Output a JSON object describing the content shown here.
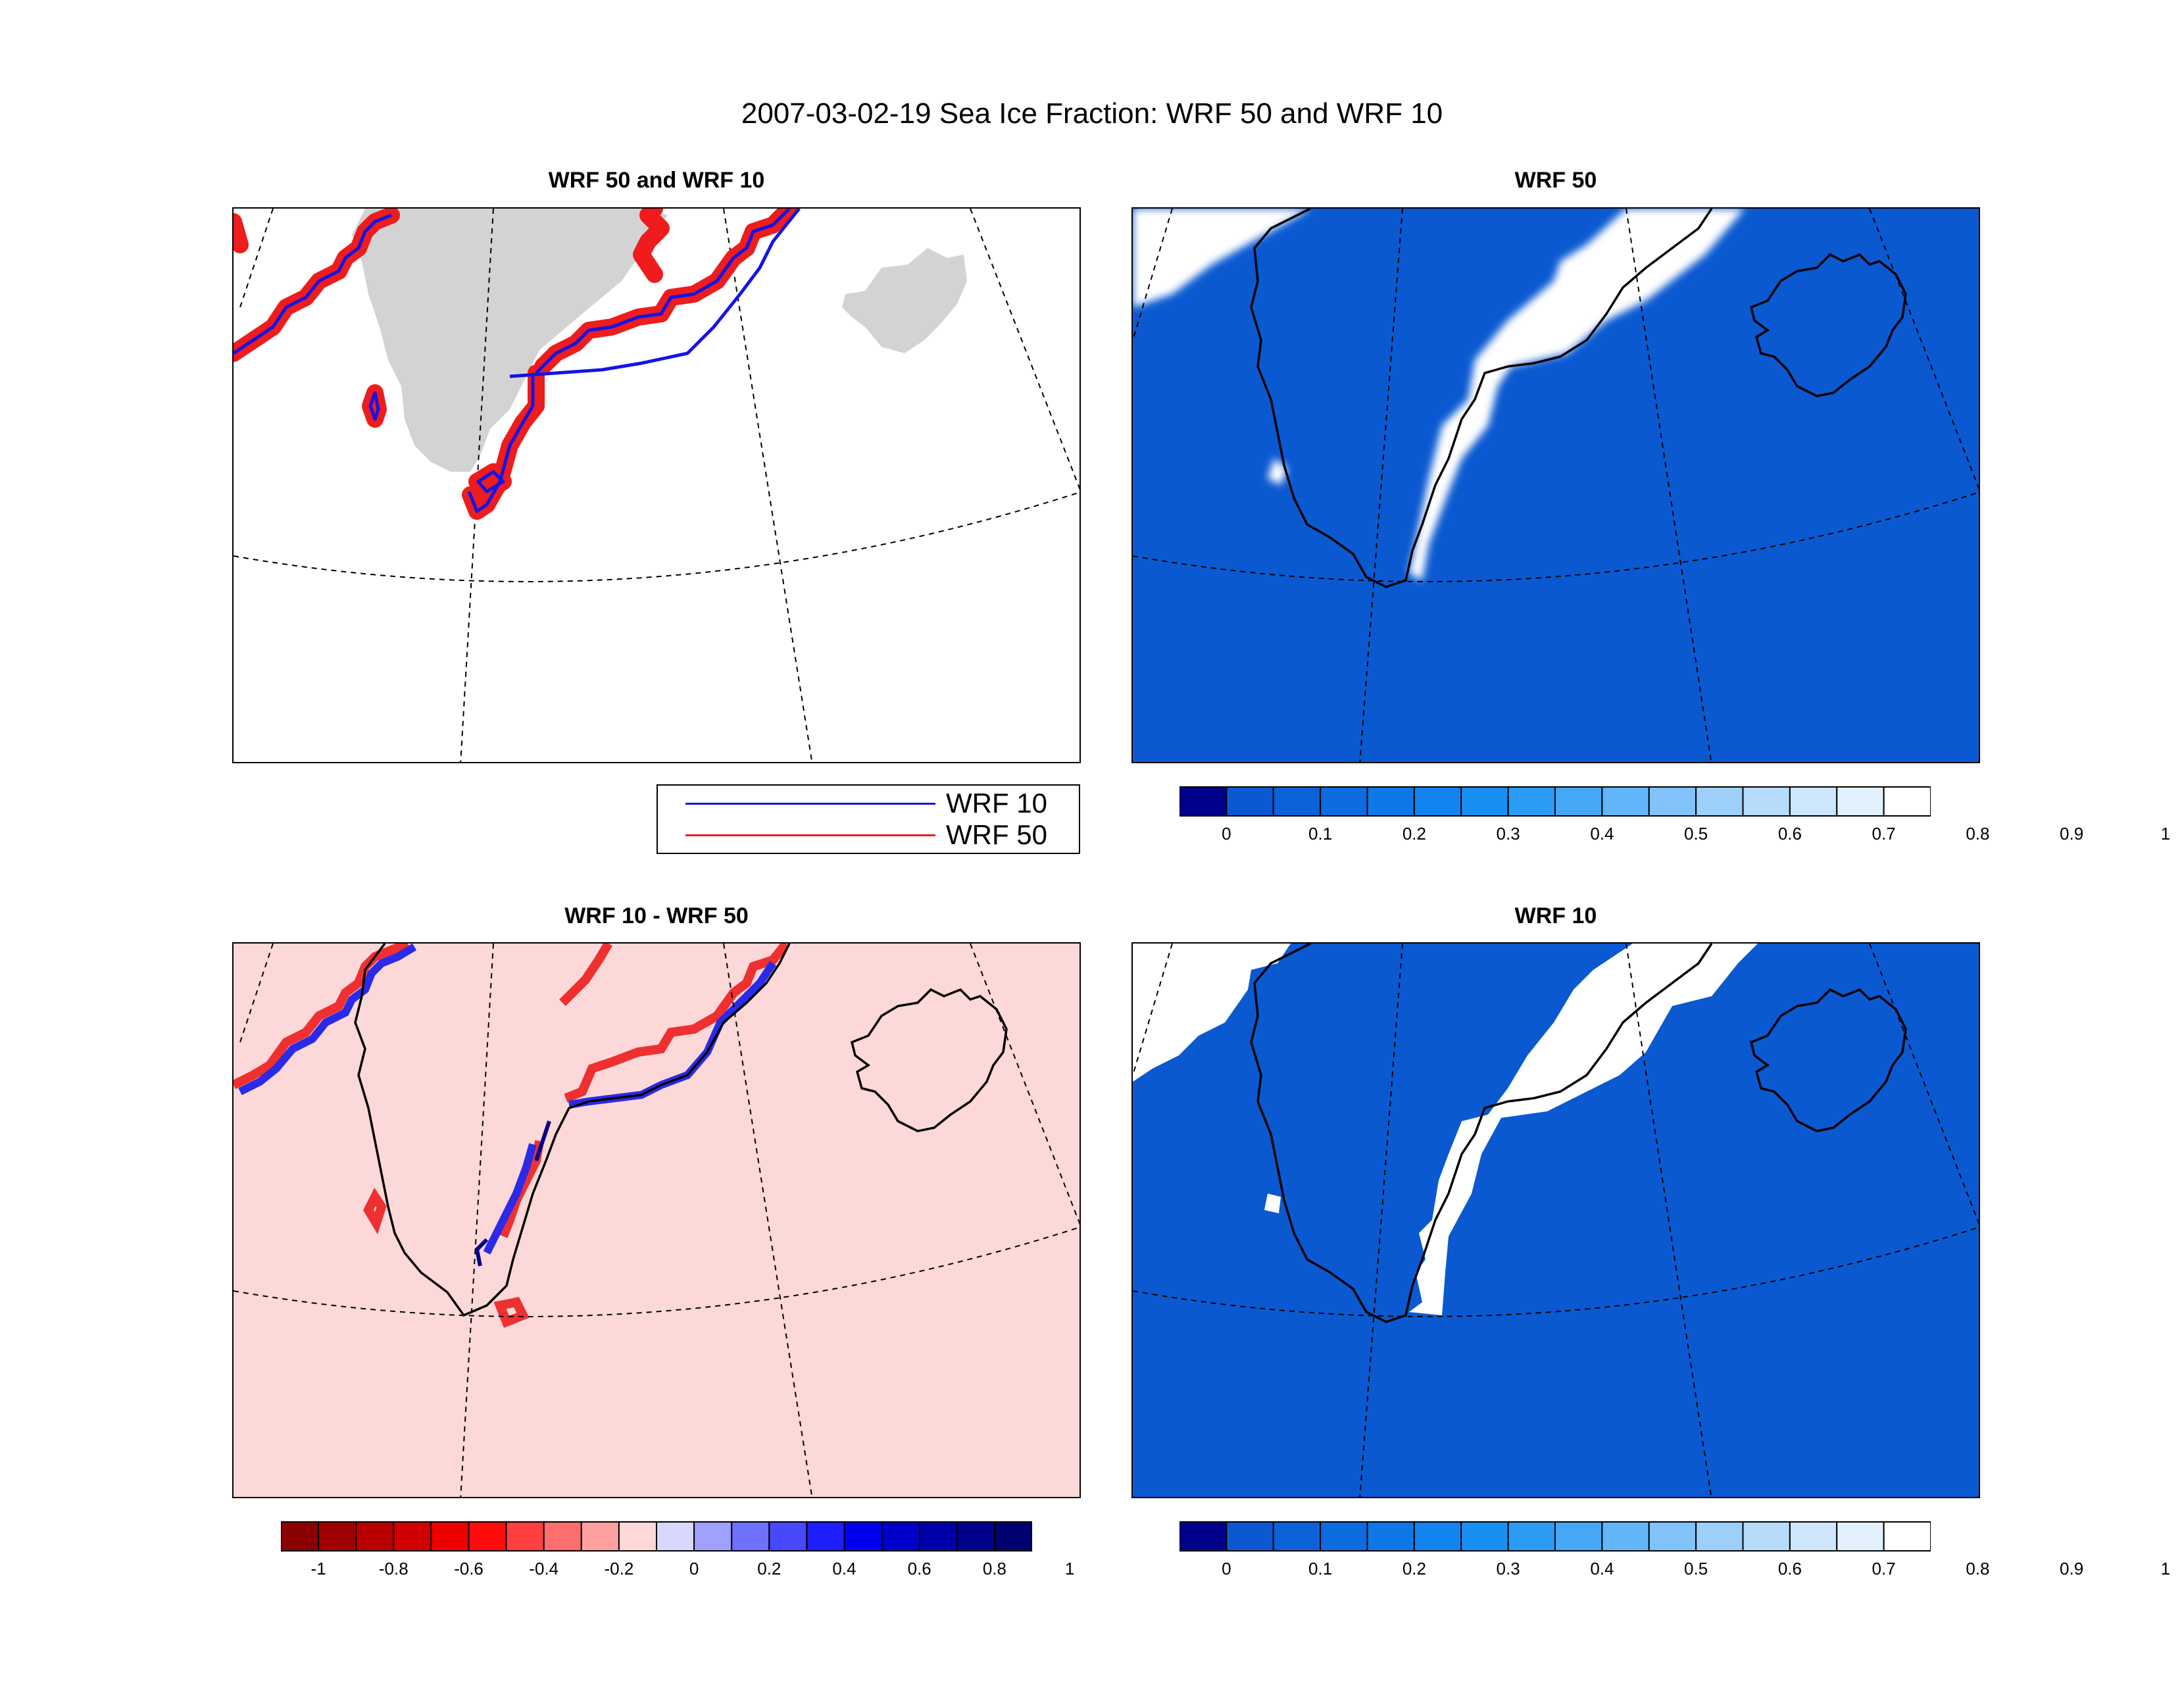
{
  "figure": {
    "title": "2007-03-02-19 Sea Ice Fraction: WRF 50 and WRF 10"
  },
  "panels": {
    "top_left": {
      "title": "WRF 50 and WRF 10"
    },
    "top_right": {
      "title": "WRF 50"
    },
    "bottom_left": {
      "title": "WRF 10 - WRF 50"
    },
    "bottom_right": {
      "title": "WRF 10"
    }
  },
  "legend": {
    "items": [
      {
        "label": "WRF 10",
        "color": "#1414e6"
      },
      {
        "label": "WRF 50",
        "color": "#ee1c1c"
      }
    ]
  },
  "colors": {
    "land": "#d3d3d3",
    "ocean_blue": "#0a59d1",
    "ice_white": "#ffffff",
    "diff_background": "#fdd8d8",
    "coastline": "#000000"
  },
  "colorbars": {
    "fraction": {
      "labels": [
        "0",
        "0.1",
        "0.2",
        "0.3",
        "0.4",
        "0.5",
        "0.6",
        "0.7",
        "0.8",
        "0.9",
        "1"
      ],
      "colors": [
        "#00008b",
        "#0a59d1",
        "#0b62d9",
        "#0c6ce0",
        "#0e78e8",
        "#1184ef",
        "#1890f3",
        "#2a9cf5",
        "#45a8f7",
        "#62b5f8",
        "#80c2f9",
        "#9ccffa",
        "#b6dbfb",
        "#cde6fc",
        "#e3f1fe",
        "#ffffff"
      ]
    },
    "difference": {
      "labels": [
        "-1",
        "-0.8",
        "-0.6",
        "-0.4",
        "-0.2",
        "0",
        "0.2",
        "0.4",
        "0.6",
        "0.8",
        "1"
      ],
      "colors": [
        "#8b0000",
        "#a00000",
        "#b80000",
        "#d00000",
        "#ec0000",
        "#ff0d0d",
        "#ff4040",
        "#ff6e6e",
        "#ffa0a0",
        "#fdd8d8",
        "#d8d8fd",
        "#a0a0ff",
        "#7070ff",
        "#4848ff",
        "#1e1eff",
        "#0000ee",
        "#0000cc",
        "#0000aa",
        "#00008b",
        "#000070"
      ]
    }
  },
  "chart_data": {
    "type": "heatmap",
    "title": "2007-03-02-19 Sea Ice Fraction: WRF 50 and WRF 10",
    "variable": "Sea Ice Fraction",
    "timestamp": "2007-03-02-19",
    "fraction_scale": {
      "min": 0,
      "max": 1,
      "tick_values": [
        0,
        0.1,
        0.2,
        0.3,
        0.4,
        0.5,
        0.6,
        0.7,
        0.8,
        0.9,
        1
      ]
    },
    "difference_scale": {
      "min": -1,
      "max": 1,
      "tick_values": [
        -1,
        -0.8,
        -0.6,
        -0.4,
        -0.2,
        0,
        0.2,
        0.4,
        0.6,
        0.8,
        1
      ]
    },
    "series": [
      {
        "name": "WRF 50"
      },
      {
        "name": "WRF 10"
      },
      {
        "name": "WRF 10 - WRF 50"
      }
    ]
  }
}
